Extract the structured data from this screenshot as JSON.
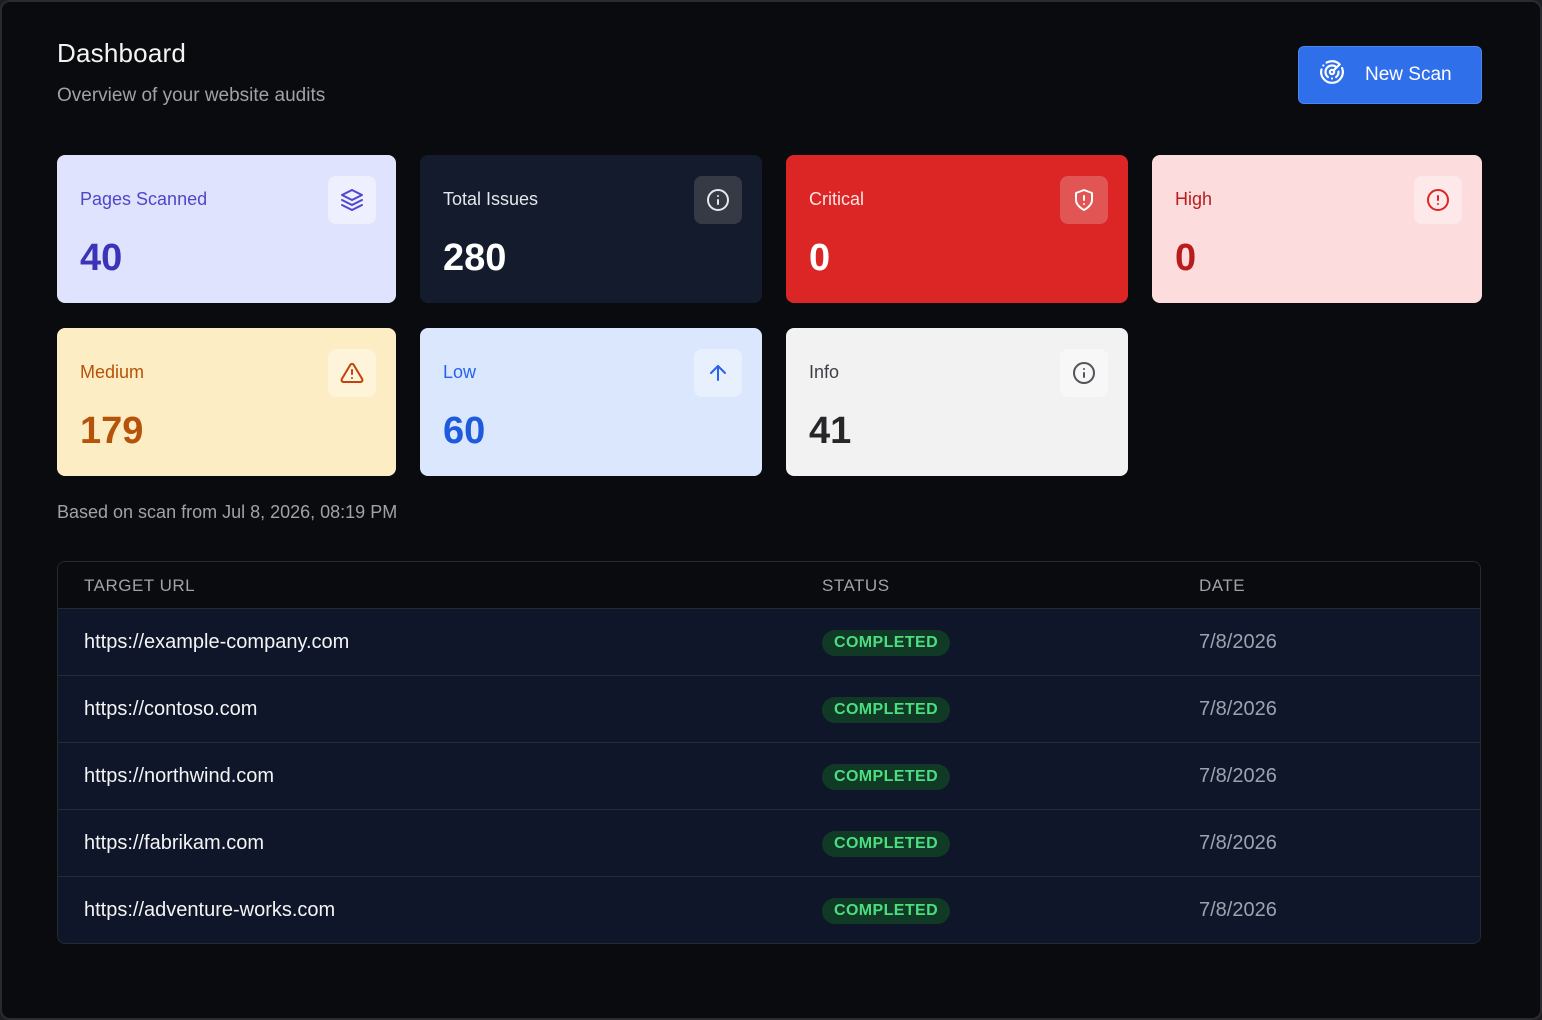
{
  "header": {
    "title": "Dashboard",
    "subtitle": "Overview of your website audits",
    "new_scan_label": "New Scan"
  },
  "stats": {
    "pages_scanned": {
      "label": "Pages Scanned",
      "value": "40",
      "icon": "layers-icon"
    },
    "total_issues": {
      "label": "Total Issues",
      "value": "280",
      "icon": "info-icon"
    },
    "critical": {
      "label": "Critical",
      "value": "0",
      "icon": "shield-alert-icon"
    },
    "high": {
      "label": "High",
      "value": "0",
      "icon": "alert-circle-icon"
    },
    "medium": {
      "label": "Medium",
      "value": "179",
      "icon": "warning-triangle-icon"
    },
    "low": {
      "label": "Low",
      "value": "60",
      "icon": "arrow-up-icon"
    },
    "info": {
      "label": "Info",
      "value": "41",
      "icon": "info-icon"
    }
  },
  "scan_note": "Based on scan from Jul 8, 2026, 08:19 PM",
  "table": {
    "columns": [
      "TARGET URL",
      "STATUS",
      "DATE"
    ],
    "rows": [
      {
        "url": "https://example-company.com",
        "status": "COMPLETED",
        "date": "7/8/2026"
      },
      {
        "url": "https://contoso.com",
        "status": "COMPLETED",
        "date": "7/8/2026"
      },
      {
        "url": "https://northwind.com",
        "status": "COMPLETED",
        "date": "7/8/2026"
      },
      {
        "url": "https://fabrikam.com",
        "status": "COMPLETED",
        "date": "7/8/2026"
      },
      {
        "url": "https://adventure-works.com",
        "status": "COMPLETED",
        "date": "7/8/2026"
      }
    ]
  },
  "colors": {
    "accent": "#2f6fea",
    "critical": "#dc2626",
    "completed_badge_text": "#4ade80"
  }
}
